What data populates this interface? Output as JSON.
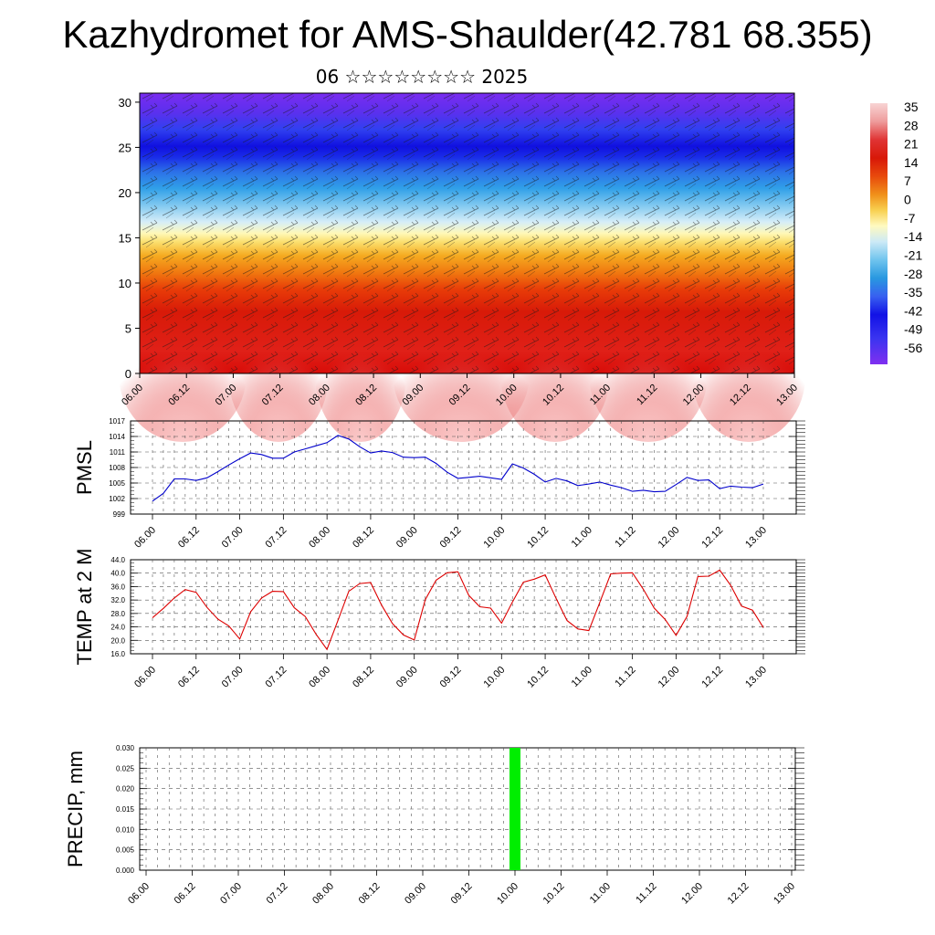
{
  "title": "Kazhydromet for AMS-Shaulder(42.781 68.355)",
  "subtitle": "06 ☆☆☆☆☆☆☆☆ 2025",
  "chart_data": [
    {
      "type": "heatmap",
      "title": "",
      "x_tick_labels": [
        "06.00",
        "06.12",
        "07.00",
        "07.12",
        "08.00",
        "08.12",
        "09.00",
        "09.12",
        "10.00",
        "10.12",
        "11.00",
        "11.12",
        "12.00",
        "12.12",
        "13.00"
      ],
      "y_ticks": [
        0,
        5,
        10,
        15,
        20,
        25,
        30
      ],
      "ylim": [
        0,
        31
      ],
      "colorbar_labels": [
        "35",
        "28",
        "21",
        "14",
        "7",
        "0",
        "-7",
        "-14",
        "-21",
        "-28",
        "-35",
        "-42",
        "-49",
        "-56"
      ],
      "colorbar_colors": [
        "#f8d0d0",
        "#ec9a9a",
        "#d82020",
        "#e53c10",
        "#f08a10",
        "#f8c840",
        "#fff6a0",
        "#c9e9f5",
        "#6ec4ee",
        "#2a9ae0",
        "#3a5ef0",
        "#1010e8",
        "#3838f0",
        "#7a30f0"
      ],
      "field_description": "temperature vs height with wind barbs"
    },
    {
      "type": "line",
      "ylabel": "PMSL",
      "ylim": [
        999,
        1017
      ],
      "y_ticks": [
        999,
        1002,
        1005,
        1008,
        1011,
        1014,
        1017
      ],
      "x_tick_labels": [
        "06.00",
        "06.12",
        "07.00",
        "07.12",
        "08.00",
        "08.12",
        "09.00",
        "09.12",
        "10.00",
        "10.12",
        "11.00",
        "11.12",
        "12.00",
        "12.12",
        "13.00"
      ],
      "x_hours": [
        0,
        3,
        6,
        9,
        12,
        15,
        18,
        21,
        24,
        27,
        30,
        33,
        36,
        39,
        42,
        45,
        48,
        51,
        54,
        57,
        60,
        63,
        66,
        69,
        72,
        75,
        78,
        81,
        84,
        87,
        90,
        93,
        96,
        99,
        102,
        105,
        108,
        111,
        114,
        117,
        120,
        123,
        126,
        129,
        132,
        135,
        138,
        141,
        144,
        147,
        150,
        153,
        156,
        159,
        162,
        165,
        168
      ],
      "values": [
        1001.5,
        1003,
        1005.8,
        1005.8,
        1005.5,
        1006,
        1007.2,
        1008.5,
        1009.7,
        1010.8,
        1010.5,
        1009.8,
        1009.8,
        1011,
        1011.6,
        1012.2,
        1012.8,
        1014.2,
        1013.5,
        1012,
        1010.8,
        1011.2,
        1010.9,
        1010,
        1009.9,
        1010,
        1008.8,
        1007.1,
        1005.9,
        1006.1,
        1006.3,
        1006,
        1005.7,
        1008.7,
        1007.9,
        1006.7,
        1005.2,
        1005.9,
        1005.4,
        1004.5,
        1004.8,
        1005.2,
        1004.6,
        1004.1,
        1003.4,
        1003.6,
        1003.3,
        1003.4,
        1004.7,
        1006.1,
        1005.5,
        1005.6,
        1003.9,
        1004.4,
        1004.2,
        1004.1,
        1004.8
      ],
      "color": "#0000cc"
    },
    {
      "type": "line",
      "ylabel": "TEMP at 2 M",
      "ylim": [
        16,
        44
      ],
      "y_ticks": [
        "16.0",
        "20.0",
        "24.0",
        "28.0",
        "32.0",
        "36.0",
        "40.0",
        "44.0"
      ],
      "x_tick_labels": [
        "06.00",
        "06.12",
        "07.00",
        "07.12",
        "08.00",
        "08.12",
        "09.00",
        "09.12",
        "10.00",
        "10.12",
        "11.00",
        "11.12",
        "12.00",
        "12.12",
        "13.00"
      ],
      "x_hours": [
        0,
        3,
        6,
        9,
        12,
        15,
        18,
        21,
        24,
        27,
        30,
        33,
        36,
        39,
        42,
        45,
        48,
        51,
        54,
        57,
        60,
        63,
        66,
        69,
        72,
        75,
        78,
        81,
        84,
        87,
        90,
        93,
        96,
        99,
        102,
        105,
        108,
        111,
        114,
        117,
        120,
        123,
        126,
        129,
        132,
        135,
        138,
        141,
        144,
        147,
        150,
        153,
        156,
        159,
        162,
        165,
        168
      ],
      "values": [
        26.7,
        29.5,
        32.6,
        35.1,
        34.3,
        29.8,
        26.3,
        24.3,
        20.4,
        28.5,
        32.6,
        34.6,
        34.5,
        29.7,
        27.1,
        21.8,
        17.3,
        25.9,
        34.6,
        36.9,
        37.2,
        30.5,
        25,
        21.6,
        20.1,
        32.1,
        37.9,
        40.1,
        40.4,
        33.4,
        30,
        29.6,
        25.1,
        31.4,
        37.3,
        38.2,
        39.5,
        32.5,
        25.9,
        23.4,
        22.9,
        31.2,
        39.8,
        40,
        40.1,
        35.2,
        29.6,
        26.2,
        21.5,
        27.1,
        39,
        39.1,
        40.9,
        36.4,
        30.2,
        29,
        23.8
      ],
      "color": "#dd0000"
    },
    {
      "type": "bar",
      "ylabel": "PRECIP, mm",
      "ylim": [
        0,
        0.03
      ],
      "y_ticks": [
        "0.000",
        "0.005",
        "0.010",
        "0.015",
        "0.020",
        "0.025",
        "0.030"
      ],
      "x_tick_labels": [
        "06.00",
        "06.12",
        "07.00",
        "07.12",
        "08.00",
        "08.12",
        "09.00",
        "09.12",
        "10.00",
        "10.12",
        "11.00",
        "11.12",
        "12.00",
        "12.12",
        "13.00"
      ],
      "bars": [
        {
          "x_hour": 96,
          "value": 0.03
        }
      ],
      "color": "#00ee00"
    }
  ]
}
